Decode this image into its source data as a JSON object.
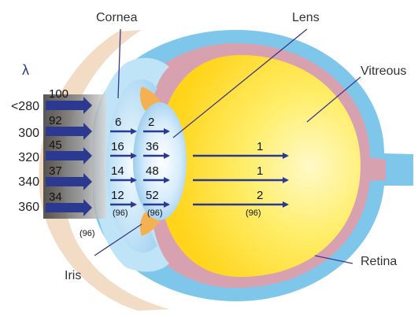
{
  "labels": {
    "cornea": "Cornea",
    "lens": "Lens",
    "vitreous": "Vitreous",
    "iris": "Iris",
    "retina": "Retina",
    "lambda": "λ"
  },
  "wavelengths": [
    "<280",
    "300",
    "320",
    "340",
    "360"
  ],
  "incident": [
    "100",
    "92",
    "45",
    "37",
    "34"
  ],
  "after_cornea": [
    "6",
    "16",
    "14",
    "12"
  ],
  "after_lens_entry": [
    "2",
    "36",
    "48",
    "52"
  ],
  "to_retina": [
    "1",
    "1",
    "2"
  ],
  "paren_values": {
    "cornea_outer": "(96)",
    "cornea_inner": "(96)",
    "lens": "(96)",
    "retina": "(96)"
  },
  "colors": {
    "arrow": "#2b3a90",
    "vitreous": "#ffe03a",
    "sclera": "#7fc7ea",
    "choroid": "#d8a1b0",
    "skin": "#f2dcc6"
  }
}
